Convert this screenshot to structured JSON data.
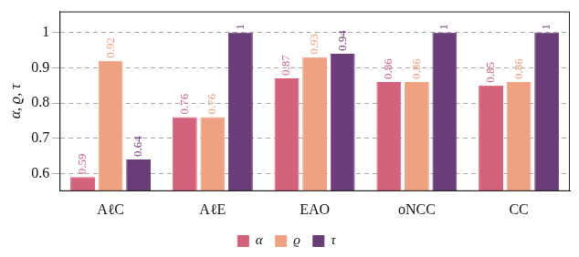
{
  "chart_data": {
    "type": "bar",
    "y_label": "α, ϱ, τ",
    "categories": [
      "AℓC",
      "AℓE",
      "EAO",
      "oNCC",
      "CC"
    ],
    "series": [
      {
        "name": "α",
        "color": "#d5627c",
        "values": [
          0.59,
          0.76,
          0.87,
          0.86,
          0.85
        ]
      },
      {
        "name": "ϱ",
        "color": "#eea281",
        "values": [
          0.92,
          0.76,
          0.93,
          0.86,
          0.86
        ]
      },
      {
        "name": "τ",
        "color": "#6a3d78",
        "values": [
          0.64,
          1,
          0.94,
          1,
          1
        ]
      }
    ],
    "ylim": [
      0.55,
      1.06
    ],
    "yticks": [
      0.6,
      0.7,
      0.8,
      0.9,
      1
    ],
    "grid": true,
    "legend": "bottom",
    "data_labels": true
  }
}
